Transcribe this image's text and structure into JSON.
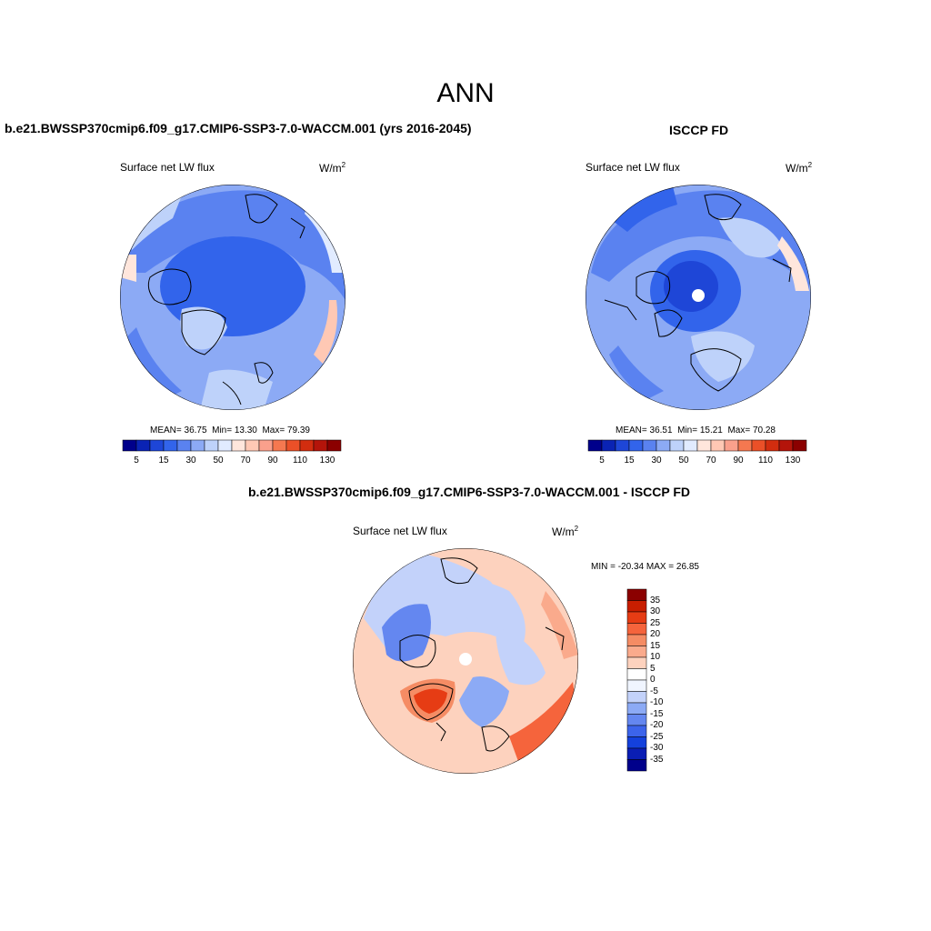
{
  "main_title": "ANN",
  "panels": {
    "model": {
      "title": "b.e21.BWSSP370cmip6.f09_g17.CMIP6-SSP3-7.0-WACCM.001 (yrs 2016-2045)",
      "label": "Surface net LW flux",
      "units": "W/m",
      "units_sup": "2",
      "mean_label": "MEAN=",
      "mean": "36.75",
      "min_label": "Min=",
      "min": "13.30",
      "max_label": "Max=",
      "max": "79.39"
    },
    "obs": {
      "title": "ISCCP FD",
      "label": "Surface net LW flux",
      "units": "W/m",
      "units_sup": "2",
      "mean_label": "MEAN=",
      "mean": "36.51",
      "min_label": "Min=",
      "min": "15.21",
      "max_label": "Max=",
      "max": "70.28"
    },
    "diff": {
      "title": "b.e21.BWSSP370cmip6.f09_g17.CMIP6-SSP3-7.0-WACCM.001 - ISCCP FD",
      "label": "Surface net LW flux",
      "units": "W/m",
      "units_sup": "2",
      "minmax": "MIN = -20.34 MAX =  26.85"
    }
  },
  "colorbars": {
    "abs": {
      "colors": [
        "#00008b",
        "#0a23b4",
        "#1e46d7",
        "#3264eb",
        "#5a82f0",
        "#8caaf5",
        "#bed2fa",
        "#e1ebff",
        "#ffe6dc",
        "#ffc8b4",
        "#faa08c",
        "#f57850",
        "#eb5028",
        "#d22d0f",
        "#b4140a",
        "#8b0000"
      ],
      "tick_labels": [
        "5",
        "15",
        "30",
        "50",
        "70",
        "90",
        "110",
        "130"
      ]
    },
    "diff": {
      "colors": [
        "#8b0000",
        "#c81e00",
        "#e63c14",
        "#f5643c",
        "#f58c64",
        "#faaa8c",
        "#fdd2be",
        "#ffffff",
        "#f0f5ff",
        "#c3d2fa",
        "#8caaf5",
        "#6487f0",
        "#3c64eb",
        "#1441dc",
        "#0a1eb4",
        "#00008b"
      ],
      "tick_labels": [
        "35",
        "30",
        "25",
        "20",
        "15",
        "10",
        "5",
        "0",
        "-5",
        "-10",
        "-15",
        "-20",
        "-25",
        "-30",
        "-35"
      ]
    }
  }
}
